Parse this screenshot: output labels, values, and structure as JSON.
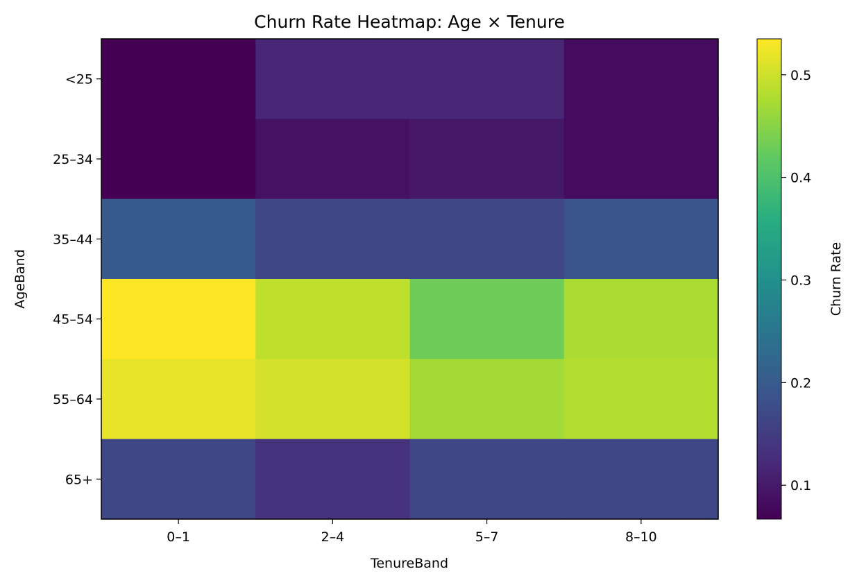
{
  "chart_data": {
    "type": "heatmap",
    "title": "Churn Rate Heatmap: Age × Tenure",
    "xlabel": "TenureBand",
    "ylabel": "AgeBand",
    "x_categories": [
      "0–1",
      "2–4",
      "5–7",
      "8–10"
    ],
    "y_categories": [
      "<25",
      "25–34",
      "35–44",
      "45–54",
      "55–64",
      "65+"
    ],
    "values": [
      [
        0.067,
        0.118,
        0.118,
        0.08
      ],
      [
        0.067,
        0.09,
        0.097,
        0.08
      ],
      [
        0.2,
        0.166,
        0.166,
        0.19
      ],
      [
        0.535,
        0.49,
        0.43,
        0.475
      ],
      [
        0.52,
        0.505,
        0.47,
        0.48
      ],
      [
        0.166,
        0.135,
        0.166,
        0.166
      ]
    ],
    "colorbar": {
      "label": "Churn Rate",
      "range": [
        0.067,
        0.535
      ],
      "ticks": [
        0.1,
        0.2,
        0.3,
        0.4,
        0.5
      ],
      "tick_labels": [
        "0.1",
        "0.2",
        "0.3",
        "0.4",
        "0.5"
      ],
      "colormap": "viridis"
    },
    "grid": false
  }
}
